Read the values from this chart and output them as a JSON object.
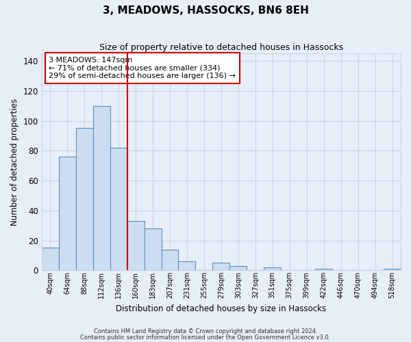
{
  "title": "3, MEADOWS, HASSOCKS, BN6 8EH",
  "subtitle": "Size of property relative to detached houses in Hassocks",
  "xlabel": "Distribution of detached houses by size in Hassocks",
  "ylabel": "Number of detached properties",
  "bar_labels": [
    "40sqm",
    "64sqm",
    "88sqm",
    "112sqm",
    "136sqm",
    "160sqm",
    "183sqm",
    "207sqm",
    "231sqm",
    "255sqm",
    "279sqm",
    "303sqm",
    "327sqm",
    "351sqm",
    "375sqm",
    "399sqm",
    "422sqm",
    "446sqm",
    "470sqm",
    "494sqm",
    "518sqm"
  ],
  "bar_values": [
    15,
    76,
    95,
    110,
    82,
    33,
    28,
    14,
    6,
    0,
    5,
    3,
    0,
    2,
    0,
    0,
    1,
    0,
    0,
    0,
    1
  ],
  "bar_color": "#ccddf0",
  "bar_edge_color": "#5a8fc2",
  "vline_x": 4.5,
  "vline_color": "#cc0000",
  "annotation_title": "3 MEADOWS: 147sqm",
  "annotation_line1": "← 71% of detached houses are smaller (334)",
  "annotation_line2": "29% of semi-detached houses are larger (136) →",
  "annotation_box_color": "white",
  "annotation_box_edge": "#cc0000",
  "ylim": [
    0,
    145
  ],
  "yticks": [
    0,
    20,
    40,
    60,
    80,
    100,
    120,
    140
  ],
  "footnote1": "Contains HM Land Registry data © Crown copyright and database right 2024.",
  "footnote2": "Contains public sector information licensed under the Open Government Licence v3.0.",
  "bg_color": "#e8eef8",
  "grid_color": "#c8d4e8"
}
